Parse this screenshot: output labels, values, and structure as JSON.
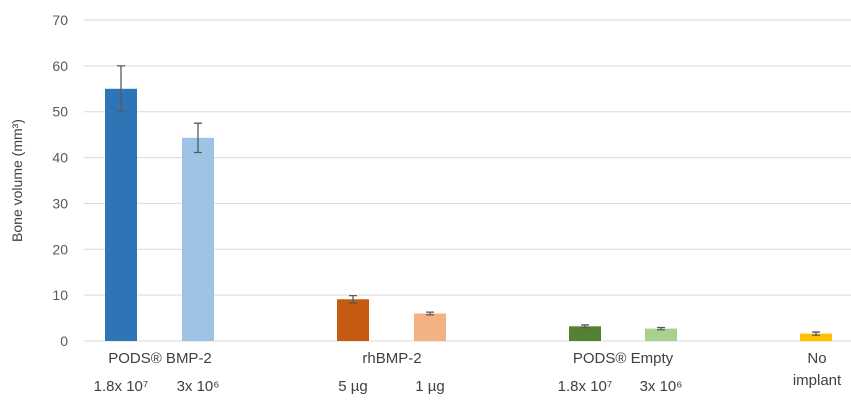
{
  "chart_data": {
    "type": "bar",
    "title": "",
    "ylabel": "Bone volume (mm³)",
    "xlabel": "",
    "ylim": [
      0,
      70
    ],
    "yticks": [
      0,
      10,
      20,
      30,
      40,
      50,
      60,
      70
    ],
    "grid": true,
    "groups": [
      {
        "label": "PODS® BMP-2",
        "bars": [
          {
            "sub_label": "1.8x 10⁷",
            "value": 55,
            "error": 5,
            "color": "#2e75b6"
          },
          {
            "sub_label": "3x 10⁶",
            "value": 44.3,
            "error": 3.2,
            "color": "#9dc3e6"
          }
        ]
      },
      {
        "label": "rhBMP-2",
        "bars": [
          {
            "sub_label": "5 µg",
            "value": 9.1,
            "error": 0.8,
            "color": "#c55a11"
          },
          {
            "sub_label": "1 µg",
            "value": 6.0,
            "error": 0.3,
            "color": "#f4b183"
          }
        ]
      },
      {
        "label": "PODS® Empty",
        "bars": [
          {
            "sub_label": "1.8x 10⁷",
            "value": 3.2,
            "error": 0.3,
            "color": "#548235"
          },
          {
            "sub_label": "3x 10⁶",
            "value": 2.7,
            "error": 0.25,
            "color": "#a9d18e"
          }
        ]
      },
      {
        "label": "No\nimplant",
        "bars": [
          {
            "sub_label": "",
            "value": 1.6,
            "error": 0.35,
            "color": "#ffc000"
          }
        ]
      }
    ]
  }
}
